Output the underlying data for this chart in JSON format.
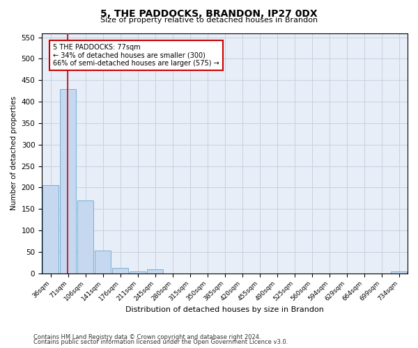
{
  "title": "5, THE PADDOCKS, BRANDON, IP27 0DX",
  "subtitle": "Size of property relative to detached houses in Brandon",
  "xlabel": "Distribution of detached houses by size in Brandon",
  "ylabel": "Number of detached properties",
  "categories": [
    "36sqm",
    "71sqm",
    "106sqm",
    "141sqm",
    "176sqm",
    "211sqm",
    "245sqm",
    "280sqm",
    "315sqm",
    "350sqm",
    "385sqm",
    "420sqm",
    "455sqm",
    "490sqm",
    "525sqm",
    "560sqm",
    "594sqm",
    "629sqm",
    "664sqm",
    "699sqm",
    "734sqm"
  ],
  "values": [
    205,
    430,
    170,
    53,
    13,
    5,
    9,
    0,
    0,
    0,
    0,
    0,
    0,
    0,
    0,
    0,
    0,
    0,
    0,
    0,
    5
  ],
  "bar_color": "#c5d8f0",
  "bar_edge_color": "#7aafd4",
  "annotation_text": "5 THE PADDOCKS: 77sqm\n← 34% of detached houses are smaller (300)\n66% of semi-detached houses are larger (575) →",
  "annotation_box_color": "#ffffff",
  "annotation_box_edge_color": "#cc0000",
  "vline_color": "#cc0000",
  "grid_color": "#c8d0e0",
  "ylim": [
    0,
    560
  ],
  "yticks": [
    0,
    50,
    100,
    150,
    200,
    250,
    300,
    350,
    400,
    450,
    500,
    550
  ],
  "footer1": "Contains HM Land Registry data © Crown copyright and database right 2024.",
  "footer2": "Contains public sector information licensed under the Open Government Licence v3.0.",
  "bg_color": "#ffffff",
  "plot_bg_color": "#e8eef8"
}
